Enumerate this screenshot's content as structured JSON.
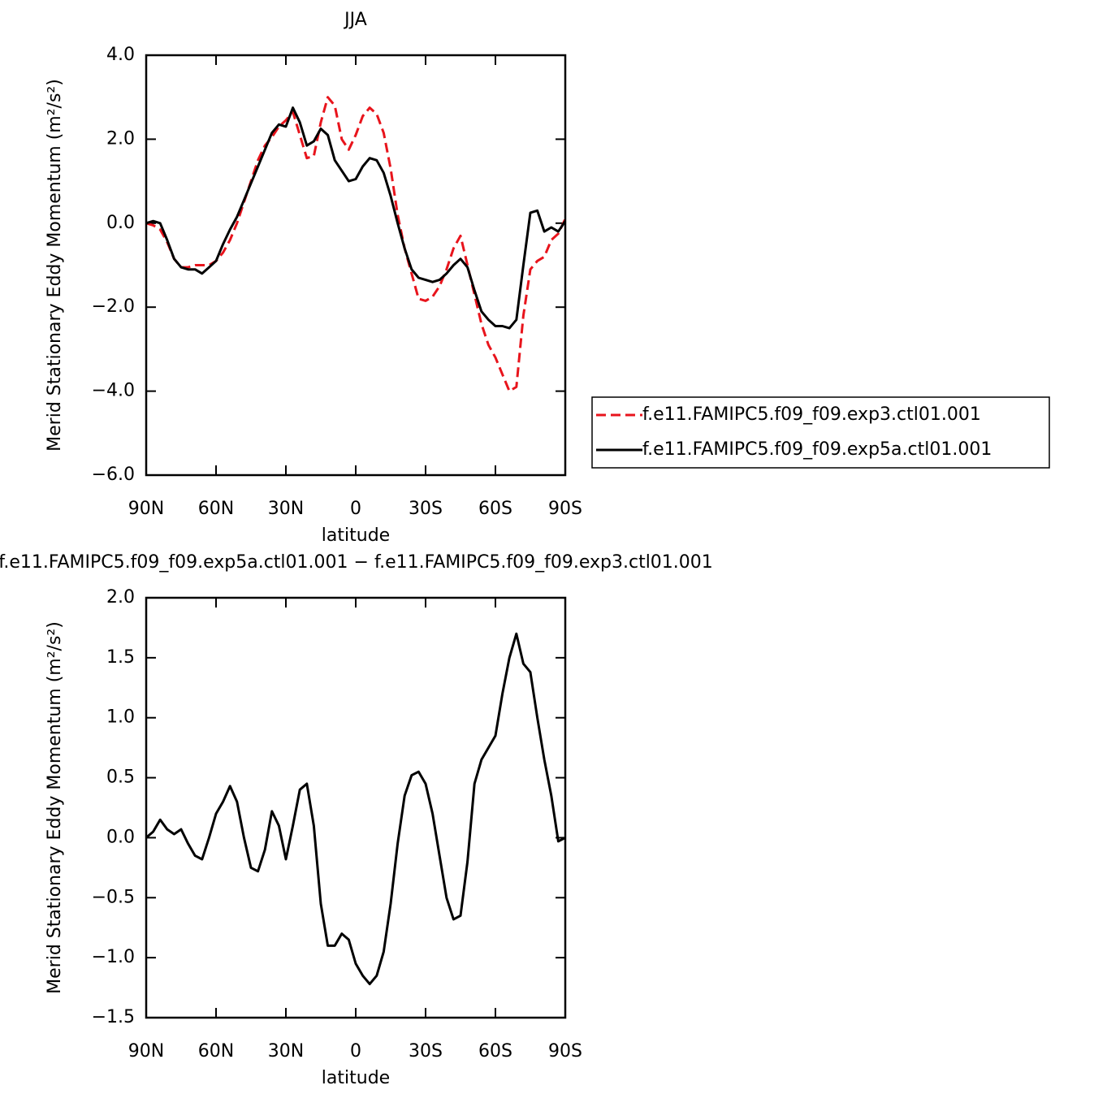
{
  "chart_data": [
    {
      "type": "line",
      "title": "JJA",
      "xlabel": "latitude",
      "ylabel": "Merid Stationary Eddy Momentum (m²/s²)",
      "x": [
        90,
        87,
        84,
        81,
        78,
        75,
        72,
        69,
        66,
        63,
        60,
        57,
        54,
        51,
        48,
        45,
        42,
        39,
        36,
        33,
        30,
        27,
        24,
        21,
        18,
        15,
        12,
        9,
        6,
        3,
        0,
        -3,
        -6,
        -9,
        -12,
        -15,
        -18,
        -21,
        -24,
        -27,
        -30,
        -33,
        -36,
        -39,
        -42,
        -45,
        -48,
        -51,
        -54,
        -57,
        -60,
        -63,
        -66,
        -69,
        -72,
        -75,
        -78,
        -81,
        -84,
        -87,
        -90
      ],
      "series": [
        {
          "name": "f.e11.FAMIPC5.f09_f09.exp3.ctl01.001",
          "color": "#e8141c",
          "line_style": "dashed",
          "values": [
            0.0,
            -0.05,
            -0.15,
            -0.45,
            -0.85,
            -1.05,
            -1.05,
            -1.0,
            -1.0,
            -1.0,
            -0.9,
            -0.7,
            -0.4,
            0.0,
            0.5,
            1.0,
            1.5,
            1.85,
            2.05,
            2.3,
            2.45,
            2.65,
            2.1,
            1.55,
            1.6,
            2.4,
            3.0,
            2.8,
            2.0,
            1.75,
            2.1,
            2.55,
            2.75,
            2.6,
            2.15,
            1.3,
            0.2,
            -0.6,
            -1.2,
            -1.8,
            -1.85,
            -1.75,
            -1.5,
            -1.1,
            -0.6,
            -0.3,
            -1.0,
            -1.7,
            -2.4,
            -2.9,
            -3.2,
            -3.6,
            -4.0,
            -3.9,
            -2.2,
            -1.1,
            -0.9,
            -0.8,
            -0.4,
            -0.25,
            0.1
          ]
        },
        {
          "name": "f.e11.FAMIPC5.f09_f09.exp5a.ctl01.001",
          "color": "#000000",
          "line_style": "solid",
          "values": [
            0.0,
            0.05,
            0.0,
            -0.4,
            -0.85,
            -1.05,
            -1.1,
            -1.1,
            -1.2,
            -1.05,
            -0.9,
            -0.5,
            -0.15,
            0.15,
            0.55,
            0.95,
            1.35,
            1.75,
            2.15,
            2.35,
            2.3,
            2.75,
            2.4,
            1.85,
            1.95,
            2.25,
            2.1,
            1.5,
            1.25,
            1.0,
            1.05,
            1.35,
            1.55,
            1.5,
            1.2,
            0.65,
            0.0,
            -0.6,
            -1.1,
            -1.3,
            -1.35,
            -1.4,
            -1.35,
            -1.2,
            -1.0,
            -0.85,
            -1.05,
            -1.6,
            -2.1,
            -2.3,
            -2.45,
            -2.45,
            -2.5,
            -2.3,
            -1.0,
            0.25,
            0.3,
            -0.2,
            -0.1,
            -0.2,
            0.05
          ]
        }
      ],
      "xlim": [
        90,
        -90
      ],
      "xticks": [
        {
          "value": 90,
          "label": "90N"
        },
        {
          "value": 60,
          "label": "60N"
        },
        {
          "value": 30,
          "label": "30N"
        },
        0,
        {
          "value": -30,
          "label": "30S"
        },
        {
          "value": -60,
          "label": "60S"
        },
        {
          "value": -90,
          "label": "90S"
        }
      ],
      "ylim": [
        -6,
        4
      ],
      "yticks": [
        {
          "value": 4,
          "label": "4.0"
        },
        {
          "value": 2,
          "label": "2.0"
        },
        {
          "value": 0,
          "label": "0.0"
        },
        {
          "value": -2,
          "label": "−2.0"
        },
        {
          "value": -4,
          "label": "−4.0"
        },
        {
          "value": -6,
          "label": "−6.0"
        }
      ],
      "legend": "outside-right"
    },
    {
      "type": "line",
      "title": "f.e11.FAMIPC5.f09_f09.exp5a.ctl01.001 − f.e11.FAMIPC5.f09_f09.exp3.ctl01.001",
      "xlabel": "latitude",
      "ylabel": "Merid Stationary Eddy Momentum (m²/s²)",
      "x": [
        90,
        87,
        84,
        81,
        78,
        75,
        72,
        69,
        66,
        63,
        60,
        57,
        54,
        51,
        48,
        45,
        42,
        39,
        36,
        33,
        30,
        27,
        24,
        21,
        18,
        15,
        12,
        9,
        6,
        3,
        0,
        -3,
        -6,
        -9,
        -12,
        -15,
        -18,
        -21,
        -24,
        -27,
        -30,
        -33,
        -36,
        -39,
        -42,
        -45,
        -48,
        -51,
        -54,
        -57,
        -60,
        -63,
        -66,
        -69,
        -72,
        -75,
        -78,
        -81,
        -84,
        -87,
        -90
      ],
      "series": [
        {
          "color": "#000000",
          "line_style": "solid",
          "values": [
            0.0,
            0.05,
            0.15,
            0.07,
            0.03,
            0.07,
            -0.05,
            -0.15,
            -0.18,
            0.0,
            0.2,
            0.3,
            0.43,
            0.3,
            0.0,
            -0.25,
            -0.28,
            -0.1,
            0.22,
            0.1,
            -0.18,
            0.1,
            0.4,
            0.45,
            0.1,
            -0.55,
            -0.9,
            -0.9,
            -0.8,
            -0.85,
            -1.05,
            -1.15,
            -1.22,
            -1.15,
            -0.95,
            -0.55,
            -0.05,
            0.35,
            0.52,
            0.55,
            0.45,
            0.2,
            -0.15,
            -0.5,
            -0.68,
            -0.65,
            -0.2,
            0.45,
            0.65,
            0.75,
            0.85,
            1.2,
            1.5,
            1.7,
            1.45,
            1.38,
            1.0,
            0.65,
            0.35,
            -0.03,
            0.0
          ]
        }
      ],
      "xlim": [
        90,
        -90
      ],
      "xticks": [
        {
          "value": 90,
          "label": "90N"
        },
        {
          "value": 60,
          "label": "60N"
        },
        {
          "value": 30,
          "label": "30N"
        },
        0,
        {
          "value": -30,
          "label": "30S"
        },
        {
          "value": -60,
          "label": "60S"
        },
        {
          "value": -90,
          "label": "90S"
        }
      ],
      "ylim": [
        -1.5,
        2
      ],
      "yticks": [
        {
          "value": 2,
          "label": "2.0"
        },
        1.5,
        {
          "value": 1,
          "label": "1.0"
        },
        0.5,
        {
          "value": 0,
          "label": "0.0"
        },
        {
          "value": -0.5,
          "label": "−0.5"
        },
        {
          "value": -1,
          "label": "−1.0"
        },
        {
          "value": -1.5,
          "label": "−1.5"
        }
      ]
    }
  ]
}
